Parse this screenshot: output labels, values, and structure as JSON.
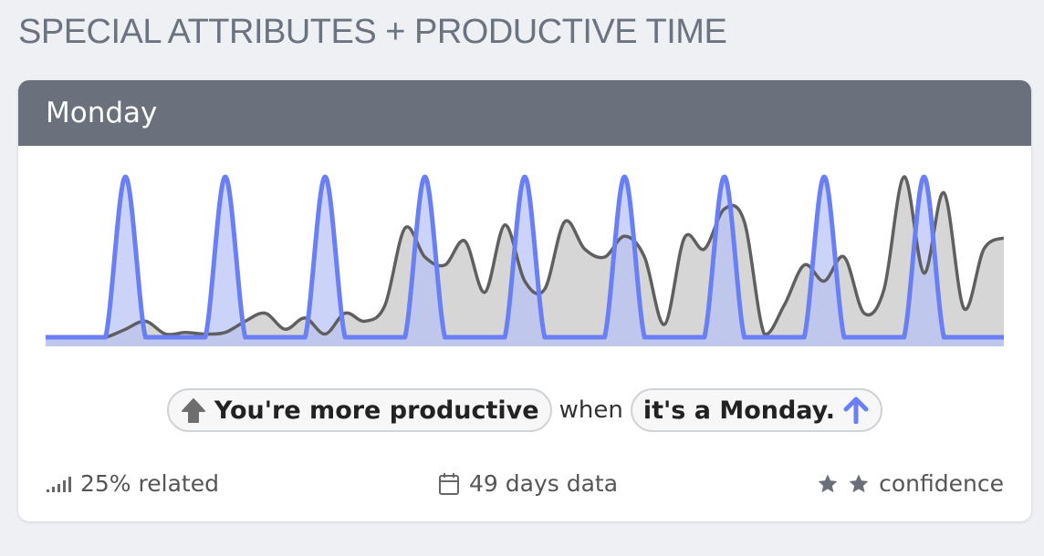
{
  "section": {
    "title": "SPECIAL ATTRIBUTES + PRODUCTIVE TIME"
  },
  "card": {
    "title": "Monday"
  },
  "statement": {
    "first": "You're more productive",
    "connector": "when",
    "second": "it's a Monday."
  },
  "footer": {
    "related": "25% related",
    "days": "49 days data",
    "confidence": "confidence",
    "confidence_stars": 2
  },
  "colors": {
    "accent": "#6b7ff5",
    "header": "#6b717c",
    "productivity_line": "#5f5f5f",
    "productivity_fill": "#d6d6d6",
    "monday_fill": "#b7c0f7"
  },
  "icons": {
    "up_arrow_left": "arrow-up-icon",
    "up_arrow_right": "arrow-up-icon",
    "signal": "signal-bars-icon",
    "calendar": "calendar-icon",
    "star": "star-icon"
  },
  "chart_data": {
    "type": "area",
    "x": [
      0,
      1,
      2,
      3,
      4,
      5,
      6,
      7,
      8,
      9,
      10,
      11,
      12,
      13,
      14,
      15,
      16,
      17,
      18,
      19,
      20,
      21,
      22,
      23,
      24,
      25,
      26,
      27,
      28,
      29,
      30,
      31,
      32,
      33,
      34,
      35,
      36,
      37,
      38,
      39,
      40,
      41,
      42,
      43,
      44,
      45,
      46,
      47,
      48
    ],
    "series": [
      {
        "values": [
          0,
          0,
          0,
          0,
          0.05,
          0.1,
          0.02,
          0.03,
          0.02,
          0.03,
          0.1,
          0.15,
          0.05,
          0.12,
          0.02,
          0.15,
          0.1,
          0.2,
          0.68,
          0.5,
          0.45,
          0.6,
          0.28,
          0.7,
          0.35,
          0.3,
          0.72,
          0.55,
          0.5,
          0.63,
          0.5,
          0.08,
          0.62,
          0.55,
          0.8,
          0.72,
          0.02,
          0.2,
          0.45,
          0.35,
          0.5,
          0.15,
          0.3,
          1.0,
          0.4,
          0.9,
          0.18,
          0.55,
          0.62
        ]
      },
      {
        "values": [
          0,
          0,
          0,
          0,
          1,
          0,
          0,
          0,
          0,
          1,
          0,
          0,
          0,
          0,
          1,
          0,
          0,
          0,
          0,
          1,
          0,
          0,
          0,
          0,
          1,
          0,
          0,
          0,
          0,
          1,
          0,
          0,
          0,
          0,
          1,
          0,
          0,
          0,
          0,
          1,
          0,
          0,
          0,
          0,
          1,
          0,
          0,
          0,
          0
        ]
      }
    ]
  }
}
